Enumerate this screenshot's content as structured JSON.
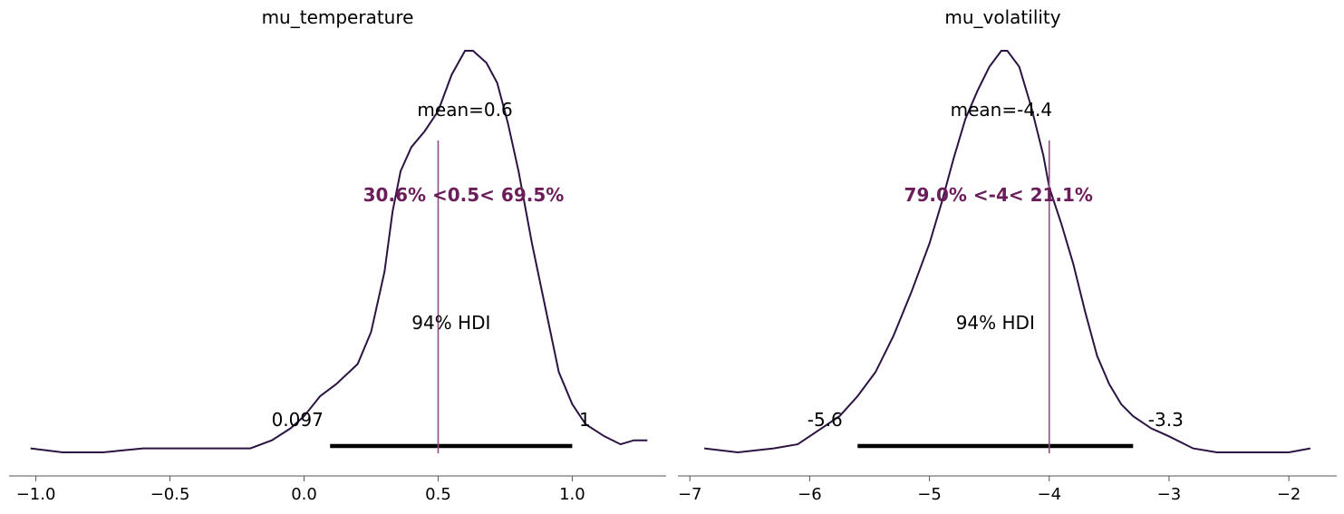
{
  "chart_data": [
    {
      "type": "line",
      "title": "mu_temperature",
      "xlim": [
        -1.1,
        1.35
      ],
      "xticks": [
        -1.0,
        -0.5,
        0.0,
        0.5,
        1.0
      ],
      "tick_labels": [
        "−1.0",
        "−0.5",
        "0.0",
        "0.5",
        "1.0"
      ],
      "mean_label": "mean=0.6",
      "hdi_label": "94% HDI",
      "hdi": [
        0.097,
        1.0
      ],
      "hdi_low_label": "0.097",
      "hdi_high_label": "1",
      "ref_value": 0.5,
      "ref_label": "30.6% <0.5< 69.5%",
      "density": [
        [
          -1.02,
          0.01
        ],
        [
          -0.9,
          0.0
        ],
        [
          -0.75,
          0.0
        ],
        [
          -0.6,
          0.01
        ],
        [
          -0.5,
          0.01
        ],
        [
          -0.4,
          0.01
        ],
        [
          -0.3,
          0.01
        ],
        [
          -0.2,
          0.01
        ],
        [
          -0.12,
          0.03
        ],
        [
          -0.05,
          0.06
        ],
        [
          0.0,
          0.09
        ],
        [
          0.06,
          0.14
        ],
        [
          0.12,
          0.17
        ],
        [
          0.2,
          0.22
        ],
        [
          0.25,
          0.3
        ],
        [
          0.3,
          0.45
        ],
        [
          0.33,
          0.6
        ],
        [
          0.36,
          0.7
        ],
        [
          0.4,
          0.76
        ],
        [
          0.45,
          0.8
        ],
        [
          0.5,
          0.85
        ],
        [
          0.55,
          0.94
        ],
        [
          0.6,
          1.0
        ],
        [
          0.63,
          1.0
        ],
        [
          0.68,
          0.97
        ],
        [
          0.72,
          0.92
        ],
        [
          0.76,
          0.82
        ],
        [
          0.8,
          0.7
        ],
        [
          0.85,
          0.52
        ],
        [
          0.9,
          0.36
        ],
        [
          0.95,
          0.2
        ],
        [
          1.0,
          0.12
        ],
        [
          1.05,
          0.07
        ],
        [
          1.12,
          0.04
        ],
        [
          1.18,
          0.02
        ],
        [
          1.23,
          0.03
        ],
        [
          1.28,
          0.03
        ]
      ]
    },
    {
      "type": "line",
      "title": "mu_volatility",
      "xlim": [
        -7.1,
        -1.6
      ],
      "xticks": [
        -7,
        -6,
        -5,
        -4,
        -3,
        -2
      ],
      "tick_labels": [
        "−7",
        "−6",
        "−5",
        "−4",
        "−3",
        "−2"
      ],
      "mean_label": "mean=-4.4",
      "hdi_label": "94% HDI",
      "hdi": [
        -5.6,
        -3.3
      ],
      "hdi_low_label": "-5.6",
      "hdi_high_label": "-3.3",
      "ref_value": -4.0,
      "ref_label": "79.0% <-4< 21.1%",
      "density": [
        [
          -6.88,
          0.01
        ],
        [
          -6.6,
          0.0
        ],
        [
          -6.3,
          0.01
        ],
        [
          -6.1,
          0.02
        ],
        [
          -5.9,
          0.06
        ],
        [
          -5.75,
          0.09
        ],
        [
          -5.6,
          0.14
        ],
        [
          -5.45,
          0.2
        ],
        [
          -5.3,
          0.29
        ],
        [
          -5.15,
          0.4
        ],
        [
          -5.0,
          0.52
        ],
        [
          -4.9,
          0.62
        ],
        [
          -4.8,
          0.73
        ],
        [
          -4.7,
          0.83
        ],
        [
          -4.6,
          0.9
        ],
        [
          -4.5,
          0.96
        ],
        [
          -4.4,
          1.0
        ],
        [
          -4.35,
          1.0
        ],
        [
          -4.25,
          0.96
        ],
        [
          -4.15,
          0.86
        ],
        [
          -4.05,
          0.74
        ],
        [
          -4.0,
          0.66
        ],
        [
          -3.9,
          0.57
        ],
        [
          -3.8,
          0.47
        ],
        [
          -3.7,
          0.35
        ],
        [
          -3.6,
          0.24
        ],
        [
          -3.5,
          0.17
        ],
        [
          -3.4,
          0.12
        ],
        [
          -3.3,
          0.09
        ],
        [
          -3.15,
          0.06
        ],
        [
          -3.0,
          0.04
        ],
        [
          -2.8,
          0.01
        ],
        [
          -2.6,
          0.0
        ],
        [
          -2.3,
          0.0
        ],
        [
          -2.0,
          0.0
        ],
        [
          -1.82,
          0.01
        ]
      ]
    }
  ]
}
